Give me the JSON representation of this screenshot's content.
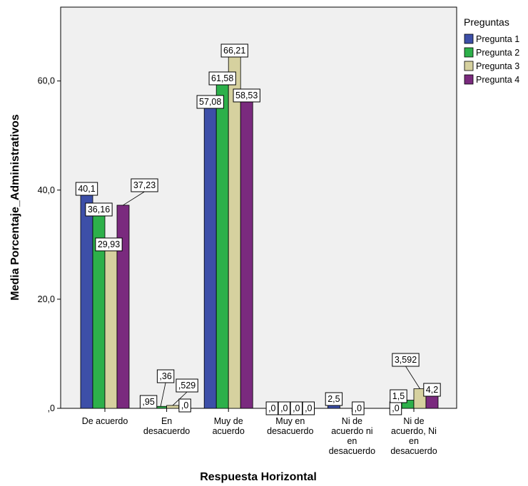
{
  "chart_data": {
    "type": "bar",
    "xlabel": "Respuesta Horizontal",
    "ylabel": "Media Porcentaje_Administrativos",
    "ylim": [
      0,
      75
    ],
    "yticks": [
      0,
      20,
      40,
      60
    ],
    "ytick_labels": [
      ",0",
      "20,0",
      "40,0",
      "60,0"
    ],
    "grid": false,
    "legend": {
      "title": "Preguntas",
      "position": "right"
    },
    "categories": [
      [
        "De acuerdo"
      ],
      [
        "En",
        "desacuerdo"
      ],
      [
        "Muy de",
        "acuerdo"
      ],
      [
        "Muy en",
        "desacuerdo"
      ],
      [
        "Ni de",
        "acuerdo ni",
        "en",
        "desacuerdo"
      ],
      [
        "Ni de",
        "acuerdo, Ni",
        "en",
        "desacuerdo"
      ]
    ],
    "series": [
      {
        "name": "Pregunta 1",
        "color": "#3d4fa8",
        "values": [
          40.1,
          0.95,
          57.08,
          0.0,
          2.5,
          0.0
        ],
        "labels": [
          "40,1",
          ",95",
          "57,08",
          ",0",
          "2,5",
          ",0"
        ]
      },
      {
        "name": "Pregunta 2",
        "color": "#2db04a",
        "values": [
          36.16,
          0.36,
          61.58,
          0.0,
          0.0,
          1.5
        ],
        "labels": [
          "36,16",
          ",36",
          "61,58",
          ",0",
          "",
          "1,5"
        ]
      },
      {
        "name": "Pregunta 3",
        "color": "#d6d19f",
        "values": [
          29.93,
          0.529,
          66.21,
          0.0,
          0.0,
          3.592
        ],
        "labels": [
          "29,93",
          ",529",
          "66,21",
          ",0",
          ",0",
          "3,592"
        ]
      },
      {
        "name": "Pregunta 4",
        "color": "#7a2a7e",
        "values": [
          37.23,
          0.0,
          58.53,
          0.0,
          0.0,
          4.2
        ],
        "labels": [
          "37,23",
          ",0",
          "58,53",
          ",0",
          "",
          "4,2"
        ]
      }
    ]
  }
}
